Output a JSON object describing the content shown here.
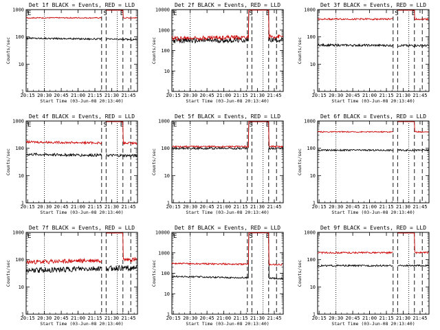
{
  "page": {
    "background": "#ffffff",
    "series_colors": {
      "events": "#000000",
      "lld": "#cc0000"
    }
  },
  "chart_data": [
    {
      "type": "line",
      "title": "Det 1f BLACK = Events, RED = LLD",
      "xlabel": "Start Time (03-Jun-08 20:13:40)",
      "ylabel": "Counts/sec",
      "y_scale": "log",
      "ylim": [
        1,
        1000
      ],
      "y_ticks": [
        "1",
        "10",
        "100",
        "1000"
      ],
      "x_ticks": [
        "20:15",
        "20:30",
        "20:45",
        "21:00",
        "21:15",
        "21:30",
        "21:45"
      ],
      "xlim": [
        "20:13:40",
        "21:53:00"
      ],
      "markers": [
        {
          "time": "20:30",
          "style": "dotted",
          "label": ""
        },
        {
          "time": "21:21",
          "style": "dashed",
          "label": ""
        },
        {
          "time": "21:25",
          "style": "dashed",
          "label": "S"
        },
        {
          "time": "21:35",
          "style": "dotted",
          "label": ""
        },
        {
          "time": "21:40",
          "style": "dashed",
          "label": "E"
        },
        {
          "time": "21:47",
          "style": "dashed",
          "label": ""
        }
      ],
      "corner_label": "E",
      "series": [
        {
          "key": "events",
          "level": 90,
          "noise": 0.03,
          "trend": -0.05,
          "gap": "21:21-21:25"
        },
        {
          "key": "lld",
          "level": 500,
          "noise": 0.02,
          "trend": 0.0,
          "gap": "21:21-21:25",
          "spike": "21:24-21:40"
        }
      ]
    },
    {
      "type": "line",
      "title": "Det 2f BLACK = Events, RED = LLD",
      "xlabel": "Start Time (03-Jun-08 20:13:40)",
      "ylabel": "Counts/sec",
      "y_scale": "log",
      "ylim": [
        1,
        10000
      ],
      "y_ticks": [
        "1",
        "10",
        "100",
        "1000",
        "10000"
      ],
      "x_ticks": [
        "20:15",
        "20:30",
        "20:45",
        "21:00",
        "21:15",
        "21:30",
        "21:45"
      ],
      "xlim": [
        "20:13:40",
        "21:53:00"
      ],
      "markers": [
        {
          "time": "20:30",
          "style": "dotted",
          "label": ""
        },
        {
          "time": "21:21",
          "style": "dashed",
          "label": ""
        },
        {
          "time": "21:25",
          "style": "dashed",
          "label": "S"
        },
        {
          "time": "21:35",
          "style": "dotted",
          "label": ""
        },
        {
          "time": "21:40",
          "style": "dashed",
          "label": "E"
        },
        {
          "time": "21:47",
          "style": "dashed",
          "label": ""
        }
      ],
      "corner_label": "E",
      "series": [
        {
          "key": "events",
          "level": 300,
          "noise": 0.12,
          "trend": 0.05,
          "gap": "",
          "spike": "21:22-21:40"
        },
        {
          "key": "lld",
          "level": 400,
          "noise": 0.1,
          "trend": 0.08,
          "gap": "",
          "spike": "21:22-21:40"
        }
      ]
    },
    {
      "type": "line",
      "title": "Det 3f BLACK = Events, RED = LLD",
      "xlabel": "Start Time (03-Jun-08 20:13:40)",
      "ylabel": "Counts/sec",
      "y_scale": "log",
      "ylim": [
        1,
        1000
      ],
      "y_ticks": [
        "1",
        "10",
        "100",
        "1000"
      ],
      "x_ticks": [
        "20:15",
        "20:30",
        "20:45",
        "21:00",
        "21:15",
        "21:30",
        "21:45"
      ],
      "xlim": [
        "20:13:40",
        "21:53:00"
      ],
      "markers": [
        {
          "time": "20:30",
          "style": "dotted",
          "label": ""
        },
        {
          "time": "21:21",
          "style": "dashed",
          "label": ""
        },
        {
          "time": "21:25",
          "style": "dashed",
          "label": "S"
        },
        {
          "time": "21:35",
          "style": "dotted",
          "label": ""
        },
        {
          "time": "21:40",
          "style": "dashed",
          "label": "E"
        },
        {
          "time": "21:47",
          "style": "dashed",
          "label": ""
        }
      ],
      "corner_label": "",
      "series": [
        {
          "key": "events",
          "level": 50,
          "noise": 0.04,
          "trend": -0.02,
          "gap": "21:21-21:25"
        },
        {
          "key": "lld",
          "level": 450,
          "noise": 0.03,
          "trend": 0.0,
          "gap": "21:21-21:25",
          "spike": "21:24-21:40"
        }
      ]
    },
    {
      "type": "line",
      "title": "Det 4f BLACK = Events, RED = LLD",
      "xlabel": "Start Time (03-Jun-08 20:13:40)",
      "ylabel": "Counts/sec",
      "y_scale": "log",
      "ylim": [
        1,
        1000
      ],
      "y_ticks": [
        "1",
        "10",
        "100",
        "1000"
      ],
      "x_ticks": [
        "20:15",
        "20:30",
        "20:45",
        "21:00",
        "21:15",
        "21:30",
        "21:45"
      ],
      "xlim": [
        "20:13:40",
        "21:53:00"
      ],
      "markers": [
        {
          "time": "20:30",
          "style": "dotted",
          "label": ""
        },
        {
          "time": "21:21",
          "style": "dashed",
          "label": ""
        },
        {
          "time": "21:25",
          "style": "dashed",
          "label": "S"
        },
        {
          "time": "21:35",
          "style": "dotted",
          "label": ""
        },
        {
          "time": "21:40",
          "style": "dashed",
          "label": "E"
        },
        {
          "time": "21:47",
          "style": "dashed",
          "label": ""
        }
      ],
      "corner_label": "E",
      "series": [
        {
          "key": "events",
          "level": 60,
          "noise": 0.05,
          "trend": -0.05,
          "gap": "21:21-21:25"
        },
        {
          "key": "lld",
          "level": 170,
          "noise": 0.04,
          "trend": -0.05,
          "gap": "21:21-21:25",
          "spike": "21:24-21:40"
        }
      ]
    },
    {
      "type": "line",
      "title": "Det 5f BLACK = Events, RED = LLD",
      "xlabel": "Start Time (03-Jun-08 20:13:40)",
      "ylabel": "Counts/sec",
      "y_scale": "log",
      "ylim": [
        1,
        1000
      ],
      "y_ticks": [
        "1",
        "10",
        "100",
        "1000"
      ],
      "x_ticks": [
        "20:15",
        "20:30",
        "20:45",
        "21:00",
        "21:15",
        "21:30",
        "21:45"
      ],
      "xlim": [
        "20:13:40",
        "21:53:00"
      ],
      "markers": [
        {
          "time": "20:30",
          "style": "dotted",
          "label": ""
        },
        {
          "time": "21:21",
          "style": "dashed",
          "label": ""
        },
        {
          "time": "21:25",
          "style": "dashed",
          "label": "S"
        },
        {
          "time": "21:35",
          "style": "dotted",
          "label": ""
        },
        {
          "time": "21:40",
          "style": "dashed",
          "label": "E"
        },
        {
          "time": "21:47",
          "style": "dashed",
          "label": ""
        }
      ],
      "corner_label": "E",
      "series": [
        {
          "key": "events",
          "level": 100,
          "noise": 0.04,
          "trend": 0.0,
          "gap": "",
          "spike": "21:22-21:40"
        },
        {
          "key": "lld",
          "level": 115,
          "noise": 0.03,
          "trend": 0.0,
          "gap": "",
          "spike": "21:22-21:40"
        }
      ]
    },
    {
      "type": "line",
      "title": "Det 6f BLACK = Events, RED = LLD",
      "xlabel": "Start Time (03-Jun-08 20:13:40)",
      "ylabel": "Counts/sec",
      "y_scale": "log",
      "ylim": [
        1,
        1000
      ],
      "y_ticks": [
        "1",
        "10",
        "100",
        "1000"
      ],
      "x_ticks": [
        "20:15",
        "20:30",
        "20:45",
        "21:00",
        "21:15",
        "21:30",
        "21:45"
      ],
      "xlim": [
        "20:13:40",
        "21:53:00"
      ],
      "markers": [
        {
          "time": "20:30",
          "style": "dotted",
          "label": ""
        },
        {
          "time": "21:21",
          "style": "dashed",
          "label": ""
        },
        {
          "time": "21:25",
          "style": "dashed",
          "label": ""
        },
        {
          "time": "21:35",
          "style": "dotted",
          "label": ""
        },
        {
          "time": "21:40",
          "style": "dashed",
          "label": ""
        },
        {
          "time": "21:47",
          "style": "dashed",
          "label": ""
        }
      ],
      "corner_label": "",
      "series": [
        {
          "key": "events",
          "level": 85,
          "noise": 0.03,
          "trend": 0.0,
          "gap": "21:21-21:25"
        },
        {
          "key": "lld",
          "level": 400,
          "noise": 0.02,
          "trend": 0.0,
          "gap": "21:21-21:25",
          "spike": "21:24-21:40"
        }
      ]
    },
    {
      "type": "line",
      "title": "Det 7f BLACK = Events, RED = LLD",
      "xlabel": "Start Time (03-Jun-08 20:13:40)",
      "ylabel": "Counts/sec",
      "y_scale": "log",
      "ylim": [
        1,
        1000
      ],
      "y_ticks": [
        "1",
        "10",
        "100",
        "1000"
      ],
      "x_ticks": [
        "20:15",
        "20:30",
        "20:45",
        "21:00",
        "21:15",
        "21:30",
        "21:45"
      ],
      "xlim": [
        "20:13:40",
        "21:53:00"
      ],
      "markers": [
        {
          "time": "20:30",
          "style": "dotted",
          "label": ""
        },
        {
          "time": "21:21",
          "style": "dashed",
          "label": ""
        },
        {
          "time": "21:25",
          "style": "dashed",
          "label": ""
        },
        {
          "time": "21:35",
          "style": "dotted",
          "label": ""
        },
        {
          "time": "21:40",
          "style": "dashed",
          "label": ""
        },
        {
          "time": "21:47",
          "style": "dashed",
          "label": ""
        }
      ],
      "corner_label": "E",
      "series": [
        {
          "key": "events",
          "level": 40,
          "noise": 0.1,
          "trend": 0.1,
          "gap": "21:21-21:25"
        },
        {
          "key": "lld",
          "level": 80,
          "noise": 0.08,
          "trend": 0.1,
          "gap": "21:21-21:25",
          "spike": "21:24-21:40"
        }
      ]
    },
    {
      "type": "line",
      "title": "Det 8f BLACK = Events, RED = LLD",
      "xlabel": "Start Time (03-Jun-08 20:13:40)",
      "ylabel": "Counts/sec",
      "y_scale": "log",
      "ylim": [
        1,
        10000
      ],
      "y_ticks": [
        "1",
        "10",
        "100",
        "1000",
        "10000"
      ],
      "x_ticks": [
        "20:15",
        "20:30",
        "20:45",
        "21:00",
        "21:15",
        "21:30",
        "21:45"
      ],
      "xlim": [
        "20:13:40",
        "21:53:00"
      ],
      "markers": [
        {
          "time": "20:30",
          "style": "dotted",
          "label": ""
        },
        {
          "time": "21:21",
          "style": "dashed",
          "label": ""
        },
        {
          "time": "21:25",
          "style": "dashed",
          "label": "S"
        },
        {
          "time": "21:35",
          "style": "dotted",
          "label": ""
        },
        {
          "time": "21:40",
          "style": "dashed",
          "label": "E"
        },
        {
          "time": "21:47",
          "style": "dashed",
          "label": ""
        }
      ],
      "corner_label": "E",
      "series": [
        {
          "key": "events",
          "level": 70,
          "noise": 0.04,
          "trend": -0.1,
          "gap": "",
          "spike": "21:22-21:40"
        },
        {
          "key": "lld",
          "level": 300,
          "noise": 0.04,
          "trend": -0.05,
          "gap": "",
          "spike": "21:22-21:40"
        }
      ]
    },
    {
      "type": "line",
      "title": "Det 9f BLACK = Events, RED = LLD",
      "xlabel": "Start Time (03-Jun-08 20:13:40)",
      "ylabel": "Counts/sec",
      "y_scale": "log",
      "ylim": [
        1,
        1000
      ],
      "y_ticks": [
        "1",
        "10",
        "100",
        "1000"
      ],
      "x_ticks": [
        "20:15",
        "20:30",
        "20:45",
        "21:00",
        "21:15",
        "21:30",
        "21:45"
      ],
      "xlim": [
        "20:13:40",
        "21:53:00"
      ],
      "markers": [
        {
          "time": "20:30",
          "style": "dotted",
          "label": ""
        },
        {
          "time": "21:21",
          "style": "dashed",
          "label": ""
        },
        {
          "time": "21:25",
          "style": "dashed",
          "label": ""
        },
        {
          "time": "21:35",
          "style": "dotted",
          "label": ""
        },
        {
          "time": "21:40",
          "style": "dashed",
          "label": ""
        },
        {
          "time": "21:47",
          "style": "dashed",
          "label": ""
        }
      ],
      "corner_label": "",
      "series": [
        {
          "key": "events",
          "level": 60,
          "noise": 0.03,
          "trend": 0.0,
          "gap": "21:21-21:25"
        },
        {
          "key": "lld",
          "level": 180,
          "noise": 0.03,
          "trend": 0.0,
          "gap": "21:21-21:25",
          "spike": "21:24-21:40"
        }
      ]
    }
  ]
}
